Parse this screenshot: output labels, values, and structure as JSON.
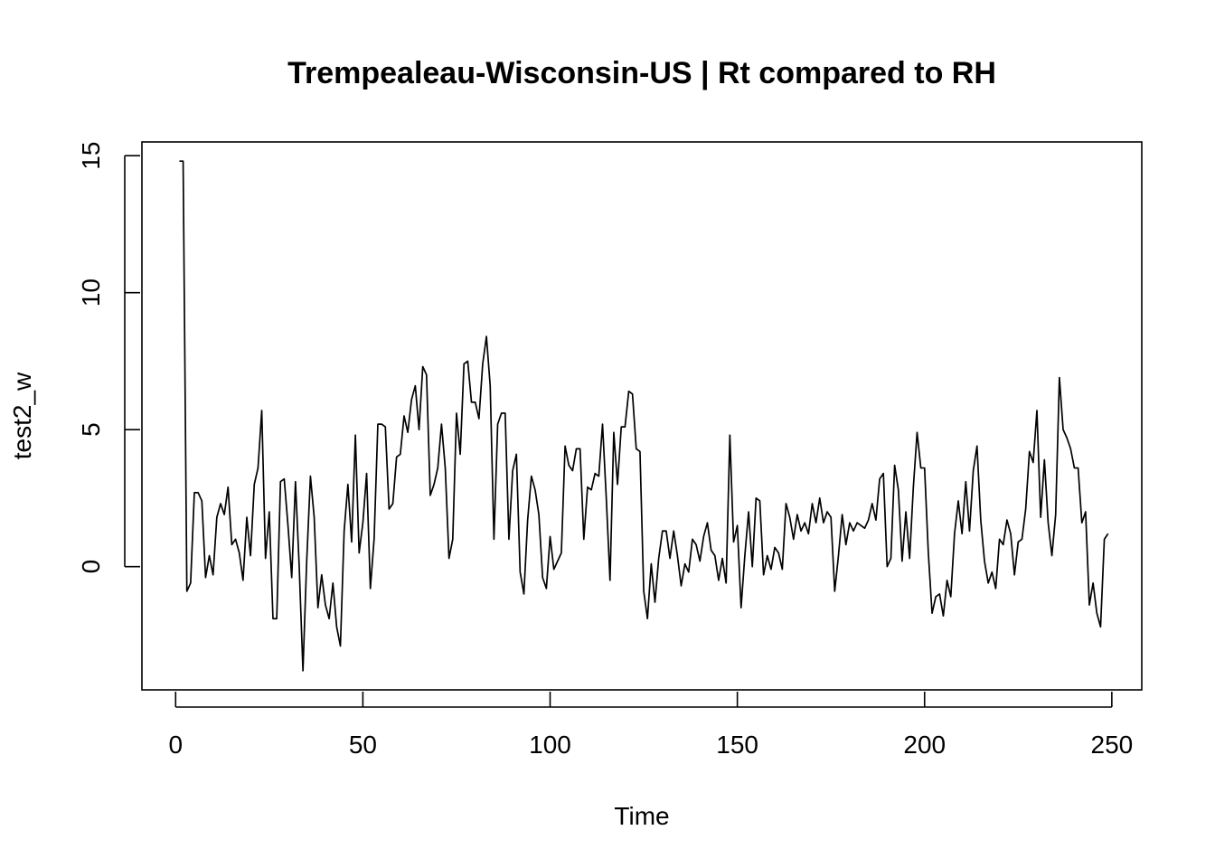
{
  "chart_data": {
    "type": "line",
    "title": "Trempealeau-Wisconsin-US | Rt compared to RH",
    "xlabel": "Time",
    "ylabel": "test2_w",
    "xlim": [
      -9,
      258
    ],
    "ylim": [
      -4.5,
      15.5
    ],
    "x_ticks": [
      0,
      50,
      100,
      150,
      200,
      250
    ],
    "y_ticks": [
      0,
      5,
      10,
      15
    ],
    "x_tick_labels": [
      "0",
      "50",
      "100",
      "150",
      "200",
      "250"
    ],
    "y_tick_labels": [
      "0",
      "5",
      "10",
      "15"
    ],
    "grid": false,
    "series": [
      {
        "line_color": "#000000",
        "x_start": 1,
        "values": [
          14.8,
          14.8,
          -0.9,
          -0.6,
          2.7,
          2.7,
          2.4,
          -0.4,
          0.4,
          -0.3,
          1.8,
          2.3,
          1.9,
          2.9,
          0.8,
          1.0,
          0.5,
          -0.5,
          1.8,
          0.4,
          3.0,
          3.6,
          5.7,
          0.3,
          2.0,
          -1.9,
          -1.9,
          3.1,
          3.2,
          1.5,
          -0.4,
          3.1,
          0.0,
          -3.8,
          0.2,
          3.3,
          1.8,
          -1.5,
          -0.3,
          -1.4,
          -1.9,
          -0.6,
          -2.2,
          -2.9,
          1.3,
          3.0,
          0.9,
          4.8,
          0.5,
          1.6,
          3.4,
          -0.8,
          1.0,
          5.2,
          5.2,
          5.1,
          2.1,
          2.3,
          4.0,
          4.1,
          5.5,
          4.9,
          6.1,
          6.6,
          5.0,
          7.3,
          7.0,
          2.6,
          3.0,
          3.6,
          5.2,
          3.6,
          0.3,
          1.0,
          5.6,
          4.1,
          7.4,
          7.5,
          6.0,
          6.0,
          5.4,
          7.4,
          8.4,
          6.6,
          1.0,
          5.2,
          5.6,
          5.6,
          1.0,
          3.5,
          4.1,
          -0.2,
          -1.0,
          1.7,
          3.3,
          2.8,
          1.9,
          -0.4,
          -0.8,
          1.1,
          -0.1,
          0.2,
          0.5,
          4.4,
          3.7,
          3.5,
          4.3,
          4.3,
          1.0,
          2.9,
          2.8,
          3.4,
          3.3,
          5.2,
          2.5,
          -0.5,
          4.9,
          3.0,
          5.1,
          5.1,
          6.4,
          6.3,
          4.3,
          4.2,
          -0.9,
          -1.9,
          0.1,
          -1.3,
          0.3,
          1.3,
          1.3,
          0.3,
          1.3,
          0.4,
          -0.7,
          0.1,
          -0.2,
          1.0,
          0.8,
          0.2,
          1.1,
          1.6,
          0.6,
          0.4,
          -0.5,
          0.3,
          -0.6,
          4.8,
          0.9,
          1.5,
          -1.5,
          0.4,
          2.0,
          0.0,
          2.5,
          2.4,
          -0.3,
          0.4,
          -0.1,
          0.7,
          0.5,
          -0.1,
          2.3,
          1.8,
          1.0,
          1.9,
          1.3,
          1.6,
          1.2,
          2.3,
          1.6,
          2.5,
          1.6,
          2.0,
          1.8,
          -0.9,
          0.4,
          1.9,
          0.8,
          1.6,
          1.3,
          1.6,
          1.5,
          1.4,
          1.7,
          2.3,
          1.7,
          3.2,
          3.4,
          0.0,
          0.3,
          3.7,
          2.8,
          0.2,
          2.0,
          0.3,
          2.9,
          4.9,
          3.6,
          3.6,
          0.5,
          -1.7,
          -1.1,
          -1.0,
          -1.8,
          -0.5,
          -1.1,
          1.2,
          2.4,
          1.2,
          3.1,
          1.3,
          3.5,
          4.4,
          1.7,
          0.2,
          -0.6,
          -0.2,
          -0.8,
          1.0,
          0.8,
          1.7,
          1.2,
          -0.3,
          0.9,
          1.0,
          2.1,
          4.2,
          3.8,
          5.7,
          1.8,
          3.9,
          1.6,
          0.4,
          1.9,
          6.9,
          5.0,
          4.7,
          4.3,
          3.6,
          3.6,
          1.6,
          2.0,
          -1.4,
          -0.6,
          -1.7,
          -2.2,
          1.0,
          1.2
        ]
      }
    ]
  }
}
